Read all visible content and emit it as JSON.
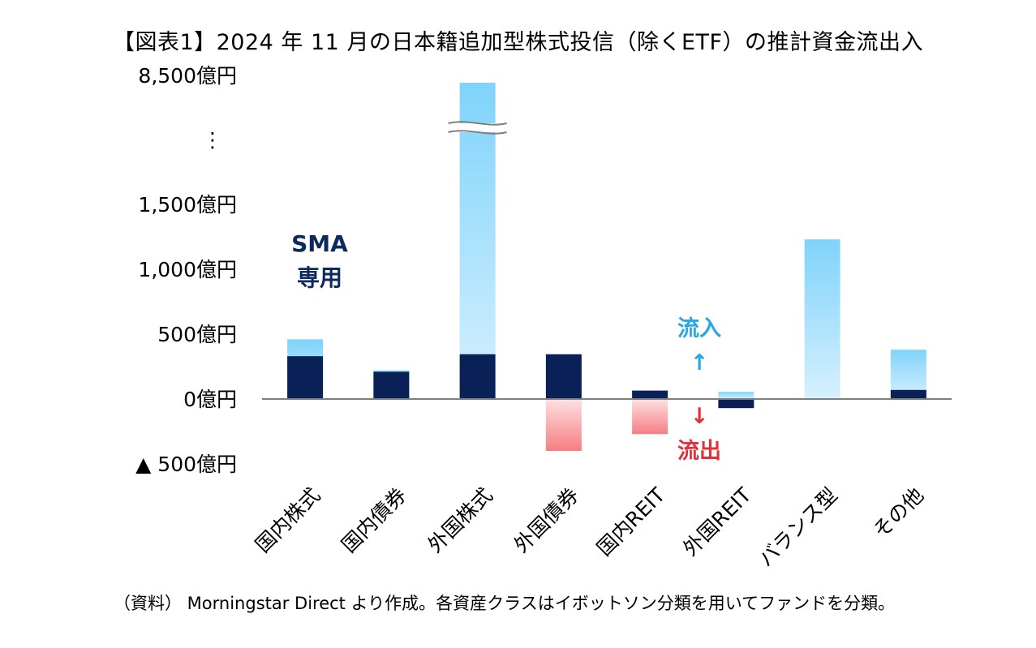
{
  "chart_data": {
    "type": "bar",
    "title": "【図表1】2024 年 11 月の日本籍追加型株式投信（除くETF）の推計資金流出入",
    "categories": [
      "国内株式",
      "国内債券",
      "外国株式",
      "外国債券",
      "国内REIT",
      "外国REIT",
      "バランス型",
      "その他"
    ],
    "y_ticks": [
      "8,500億円",
      "⋮",
      "1,500億円",
      "1,000億円",
      "500億円",
      "0億円",
      "▲ 500億円"
    ],
    "unit": "億円",
    "ylim": [
      -500,
      1500
    ],
    "axis_break": {
      "below_break_max": 1500,
      "top_value": 8500
    },
    "series": [
      {
        "name": "total",
        "values": [
          460,
          220,
          8500,
          -400,
          -270,
          55,
          1230,
          380
        ],
        "colors": {
          "positive": "#7fd3fb",
          "negative": "#f57e83"
        }
      },
      {
        "name": "SMA専用",
        "values": [
          330,
          210,
          345,
          345,
          65,
          -70,
          0,
          70
        ],
        "color": "#0a2157"
      }
    ],
    "annotations": {
      "sma_line1": "SMA",
      "sma_line2": "専用",
      "inflow_label": "流入",
      "inflow_arrow": "↑",
      "outflow_arrow": "↓",
      "outflow_label": "流出"
    },
    "colors": {
      "sma": "#0a2157",
      "inflow_text": "#29a7e1",
      "outflow_text": "#e0313b",
      "axis": "#7f7f7f"
    },
    "grid": false,
    "legend": "none"
  },
  "source_note": "（資料） Morningstar Direct より作成。各資産クラスはイボットソン分類を用いてファンドを分類。"
}
